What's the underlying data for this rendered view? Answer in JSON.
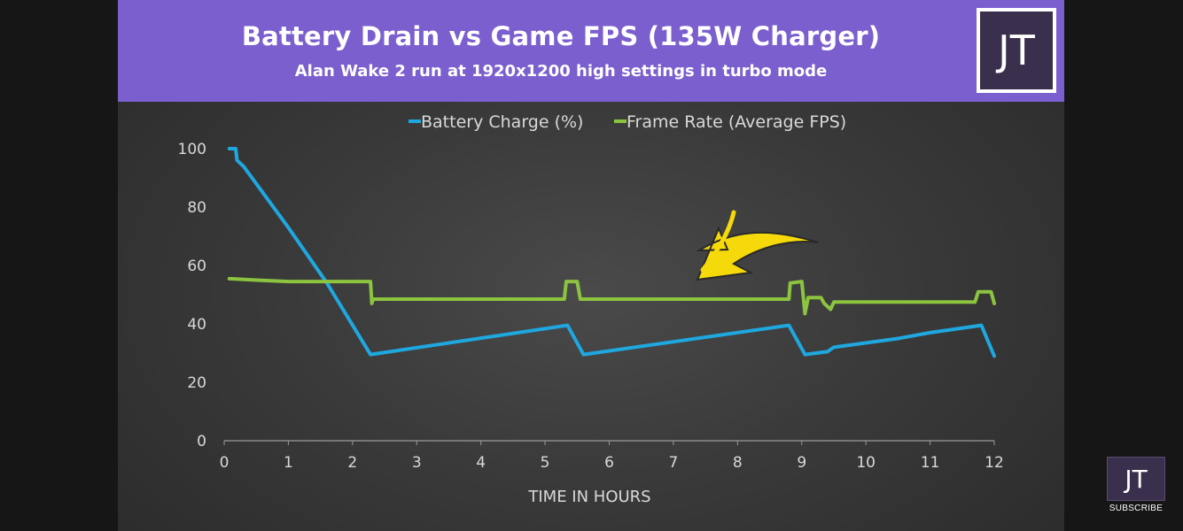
{
  "header": {
    "title": "Battery Drain vs Game FPS (135W Charger)",
    "subtitle": "Alan Wake 2 run at 1920x1200 high settings in turbo mode",
    "logo_text": "JT"
  },
  "overlay": {
    "subscribe_logo": "JT",
    "subscribe_label": "SUBSCRIBE",
    "arrow_color": "#f5d90a"
  },
  "chart_data": {
    "type": "line",
    "title": "Battery Drain vs Game FPS (135W Charger)",
    "subtitle": "Alan Wake 2 run at 1920x1200 high settings in turbo mode",
    "xlabel": "TIME IN HOURS",
    "ylabel": "",
    "xlim": [
      0,
      12
    ],
    "ylim": [
      0,
      100
    ],
    "xticks": [
      0,
      1,
      2,
      3,
      4,
      5,
      6,
      7,
      8,
      9,
      10,
      11,
      12
    ],
    "yticks": [
      0,
      20,
      40,
      60,
      80,
      100
    ],
    "grid": false,
    "legend_position": "top",
    "series": [
      {
        "name": "Battery Charge (%)",
        "color": "#1fa7e0",
        "points": [
          [
            0.08,
            100
          ],
          [
            0.18,
            100
          ],
          [
            0.2,
            96
          ],
          [
            0.3,
            94
          ],
          [
            0.4,
            91
          ],
          [
            1.0,
            73
          ],
          [
            1.6,
            54
          ],
          [
            2.28,
            29.5
          ],
          [
            5.35,
            39.5
          ],
          [
            5.6,
            29.5
          ],
          [
            8.8,
            39.5
          ],
          [
            9.05,
            29.5
          ],
          [
            9.4,
            30.5
          ],
          [
            9.5,
            32
          ],
          [
            10.5,
            35
          ],
          [
            11.0,
            37
          ],
          [
            11.8,
            39.5
          ],
          [
            12.0,
            29
          ]
        ]
      },
      {
        "name": "Frame Rate (Average FPS)",
        "color": "#8cc43f",
        "points": [
          [
            0.08,
            55.5
          ],
          [
            0.5,
            55
          ],
          [
            1.0,
            54.5
          ],
          [
            1.5,
            54.5
          ],
          [
            2.0,
            54.5
          ],
          [
            2.28,
            54.5
          ],
          [
            2.3,
            47
          ],
          [
            2.32,
            48.5
          ],
          [
            3.0,
            48.5
          ],
          [
            4.0,
            48.5
          ],
          [
            5.3,
            48.5
          ],
          [
            5.33,
            54.5
          ],
          [
            5.5,
            54.5
          ],
          [
            5.55,
            48.5
          ],
          [
            6.5,
            48.5
          ],
          [
            7.5,
            48.5
          ],
          [
            8.8,
            48.5
          ],
          [
            8.82,
            54
          ],
          [
            9.0,
            54.5
          ],
          [
            9.05,
            43.5
          ],
          [
            9.1,
            49
          ],
          [
            9.3,
            49
          ],
          [
            9.35,
            47
          ],
          [
            9.45,
            45
          ],
          [
            9.5,
            47.5
          ],
          [
            10.5,
            47.5
          ],
          [
            11.7,
            47.5
          ],
          [
            11.75,
            51
          ],
          [
            11.95,
            51
          ],
          [
            12.0,
            47
          ]
        ]
      }
    ]
  }
}
